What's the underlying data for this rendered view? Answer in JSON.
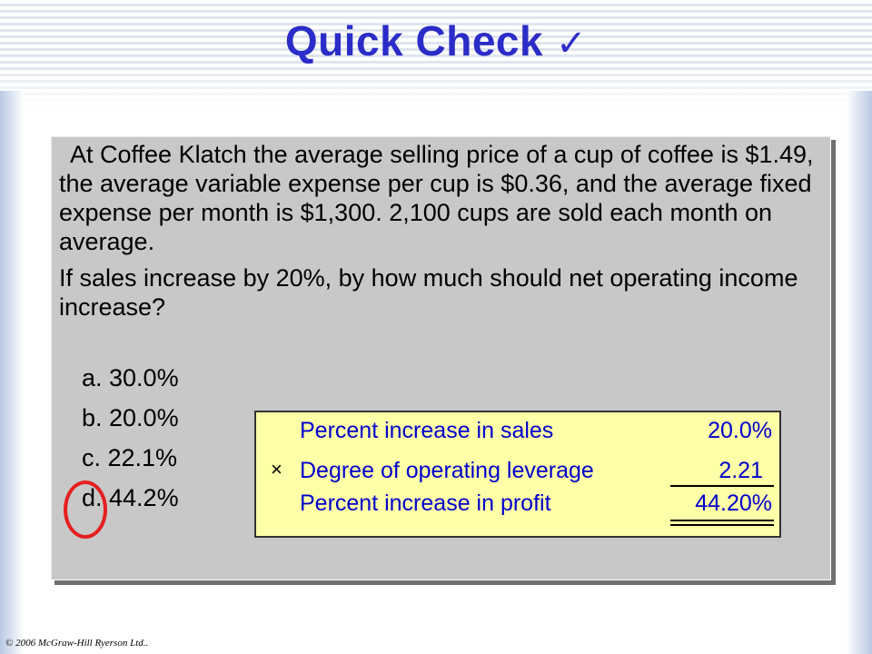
{
  "slide": {
    "title": "Quick Check",
    "title_icon": "checkmark-icon",
    "title_icon_glyph": "✓",
    "accent_color": "#2c2cc8"
  },
  "question": {
    "paragraph_1": "At Coffee Klatch the average selling price of a cup of coffee is $1.49, the average variable expense per cup is $0.36, and the average fixed expense per month is $1,300. 2,100 cups are sold each month on average.",
    "paragraph_2": "If sales increase by 20%, by how much should net operating income increase?"
  },
  "options": [
    {
      "label": "a. 30.0%"
    },
    {
      "label": "b. 20.0%"
    },
    {
      "label": "c. 22.1%"
    },
    {
      "label": "d. 44.2%"
    }
  ],
  "selected_answer": "d",
  "calculation": {
    "rows": [
      {
        "operator": "",
        "label": "Percent increase in sales",
        "value": "20.0%"
      },
      {
        "operator": "×",
        "label": "Degree of operating leverage",
        "value": "2.21"
      },
      {
        "operator": "",
        "label": "Percent increase in profit",
        "value": "44.20%"
      }
    ],
    "box_color": "#ffffa8",
    "text_color": "#0000cc"
  },
  "footer": {
    "copyright": "© 2006 McGraw-Hill Ryerson Ltd.."
  }
}
